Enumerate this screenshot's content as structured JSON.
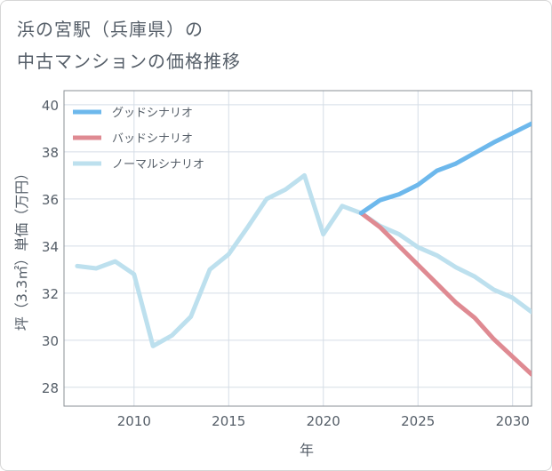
{
  "title_lines": [
    "浜の宮駅（兵庫県）の",
    "中古マンションの価格推移"
  ],
  "chart_data": {
    "type": "line",
    "xlabel": "年",
    "ylabel": "坪（3.3㎡）単価（万円）",
    "xlim": [
      2006.3,
      2031
    ],
    "ylim": [
      27.2,
      40.6
    ],
    "xticks": [
      2010,
      2015,
      2020,
      2025,
      2030
    ],
    "xtick_labels": [
      "2010",
      "2015",
      "2020",
      "2025",
      "2030"
    ],
    "yticks": [
      28,
      30,
      32,
      34,
      36,
      38,
      40
    ],
    "ytick_labels": [
      "28",
      "30",
      "32",
      "34",
      "36",
      "38",
      "40"
    ],
    "grid": true,
    "legend_position": "top-left",
    "series": [
      {
        "name": "グッドシナリオ",
        "color": "#6db8ec",
        "x": [
          2022,
          2023,
          2024,
          2025,
          2026,
          2027,
          2028,
          2029,
          2030,
          2031
        ],
        "y": [
          35.4,
          35.95,
          36.2,
          36.6,
          37.2,
          37.5,
          37.95,
          38.4,
          38.8,
          39.2
        ]
      },
      {
        "name": "バッドシナリオ",
        "color": "#df8a92",
        "x": [
          2022,
          2023,
          2024,
          2025,
          2026,
          2027,
          2028,
          2029,
          2030,
          2031
        ],
        "y": [
          35.4,
          34.8,
          34.0,
          33.2,
          32.4,
          31.6,
          30.95,
          30.05,
          29.3,
          28.55
        ]
      },
      {
        "name": "ノーマルシナリオ",
        "color": "#bde0ee",
        "x": [
          2007,
          2008,
          2009,
          2010,
          2011,
          2012,
          2013,
          2014,
          2015,
          2016,
          2017,
          2018,
          2019,
          2020,
          2021,
          2022,
          2023,
          2024,
          2025,
          2026,
          2027,
          2028,
          2029,
          2030,
          2031
        ],
        "y": [
          33.15,
          33.05,
          33.35,
          32.8,
          29.75,
          30.2,
          31.0,
          33.0,
          33.65,
          34.8,
          36.0,
          36.4,
          37.0,
          34.5,
          35.7,
          35.4,
          34.85,
          34.5,
          33.95,
          33.6,
          33.1,
          32.7,
          32.15,
          31.8,
          31.2
        ]
      }
    ]
  }
}
